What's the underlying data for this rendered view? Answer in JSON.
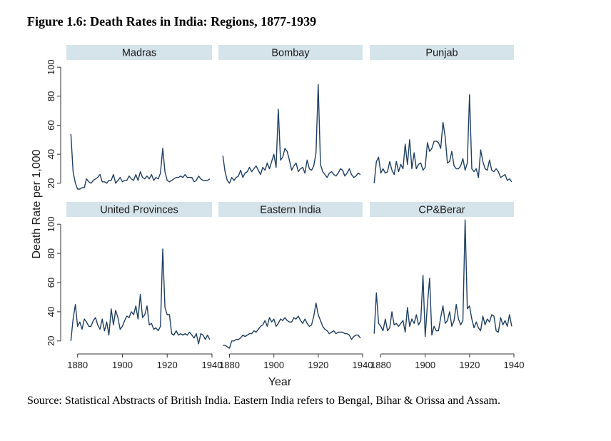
{
  "figure": {
    "title": "Figure 1.6: Death Rates in India: Regions, 1877-1939",
    "source": "Source: Statistical Abstracts of British India. Eastern India refers to Bengal, Bihar & Orissa and Assam."
  },
  "colors": {
    "line": "#1f3f63",
    "header": "#d5e3ea",
    "axis": "#333333"
  },
  "chart_data": {
    "type": "line",
    "xlabel": "Year",
    "ylabel": "Death Rate per 1,000",
    "xlim": [
      1875,
      1940
    ],
    "ylim": [
      15,
      105
    ],
    "xticks": [
      1880,
      1900,
      1920,
      1940
    ],
    "yticks": [
      20,
      40,
      60,
      80,
      100
    ],
    "grid": false,
    "x": [
      1877,
      1878,
      1879,
      1880,
      1881,
      1882,
      1883,
      1884,
      1885,
      1886,
      1887,
      1888,
      1889,
      1890,
      1891,
      1892,
      1893,
      1894,
      1895,
      1896,
      1897,
      1898,
      1899,
      1900,
      1901,
      1902,
      1903,
      1904,
      1905,
      1906,
      1907,
      1908,
      1909,
      1910,
      1911,
      1912,
      1913,
      1914,
      1915,
      1916,
      1917,
      1918,
      1919,
      1920,
      1921,
      1922,
      1923,
      1924,
      1925,
      1926,
      1927,
      1928,
      1929,
      1930,
      1931,
      1932,
      1933,
      1934,
      1935,
      1936,
      1937,
      1938,
      1939
    ],
    "series": [
      {
        "name": "Madras",
        "values": [
          54,
          28,
          20,
          16,
          16,
          17,
          17,
          23,
          21,
          20,
          22,
          23,
          24,
          26,
          21,
          21,
          20,
          22,
          22,
          26,
          20,
          22,
          24,
          21,
          22,
          22,
          25,
          23,
          22,
          26,
          22,
          28,
          24,
          23,
          25,
          23,
          26,
          22,
          24,
          23,
          27,
          44,
          28,
          22,
          21,
          22,
          23,
          24,
          24,
          25,
          24,
          26,
          24,
          24,
          24,
          21,
          22,
          25,
          23,
          22,
          22,
          22,
          23
        ]
      },
      {
        "name": "Bombay",
        "values": [
          39,
          28,
          22,
          20,
          24,
          22,
          24,
          25,
          29,
          24,
          27,
          28,
          31,
          28,
          30,
          32,
          29,
          26,
          31,
          29,
          34,
          30,
          35,
          40,
          31,
          71,
          36,
          38,
          44,
          42,
          36,
          29,
          32,
          34,
          28,
          30,
          31,
          27,
          36,
          30,
          29,
          32,
          41,
          88,
          33,
          28,
          26,
          24,
          27,
          28,
          26,
          25,
          27,
          30,
          29,
          25,
          27,
          30,
          26,
          24,
          25,
          27,
          26
        ]
      },
      {
        "name": "Punjab",
        "values": [
          20,
          35,
          38,
          27,
          30,
          27,
          28,
          35,
          29,
          26,
          35,
          28,
          33,
          30,
          47,
          33,
          50,
          30,
          41,
          30,
          33,
          34,
          29,
          31,
          48,
          42,
          44,
          49,
          49,
          48,
          44,
          62,
          52,
          34,
          35,
          42,
          32,
          30,
          30,
          32,
          37,
          29,
          34,
          81,
          30,
          28,
          30,
          24,
          43,
          35,
          30,
          29,
          36,
          29,
          28,
          30,
          28,
          24,
          25,
          26,
          22,
          23,
          21
        ]
      },
      {
        "name": "United Provinces",
        "values": [
          20,
          35,
          45,
          30,
          33,
          28,
          35,
          33,
          30,
          30,
          34,
          36,
          31,
          28,
          35,
          27,
          33,
          24,
          42,
          31,
          41,
          36,
          28,
          30,
          34,
          37,
          36,
          40,
          38,
          44,
          35,
          52,
          36,
          38,
          44,
          31,
          32,
          28,
          29,
          27,
          30,
          83,
          43,
          38,
          38,
          25,
          24,
          27,
          24,
          25,
          24,
          25,
          24,
          26,
          24,
          22,
          25,
          18,
          25,
          24,
          21,
          24,
          21
        ]
      },
      {
        "name": "Eastern India",
        "values": [
          17,
          17,
          16,
          15,
          20,
          20,
          21,
          21,
          22,
          24,
          23,
          24,
          25,
          25,
          27,
          26,
          28,
          30,
          31,
          34,
          30,
          36,
          33,
          35,
          30,
          32,
          35,
          34,
          36,
          34,
          33,
          33,
          36,
          35,
          37,
          34,
          32,
          35,
          32,
          30,
          31,
          37,
          46,
          38,
          34,
          30,
          28,
          27,
          25,
          26,
          27,
          25,
          26,
          26,
          26,
          25,
          25,
          24,
          21,
          23,
          24,
          24,
          22
        ]
      },
      {
        "name": "CP&Berar",
        "values": [
          25,
          53,
          32,
          30,
          27,
          35,
          27,
          29,
          40,
          31,
          32,
          30,
          32,
          34,
          26,
          43,
          30,
          35,
          32,
          38,
          31,
          34,
          65,
          23,
          45,
          63,
          24,
          30,
          27,
          27,
          36,
          44,
          32,
          34,
          40,
          30,
          34,
          45,
          35,
          31,
          34,
          103,
          42,
          44,
          35,
          29,
          33,
          29,
          27,
          37,
          31,
          35,
          33,
          38,
          37,
          27,
          26,
          36,
          31,
          34,
          30,
          38,
          30
        ]
      }
    ]
  }
}
